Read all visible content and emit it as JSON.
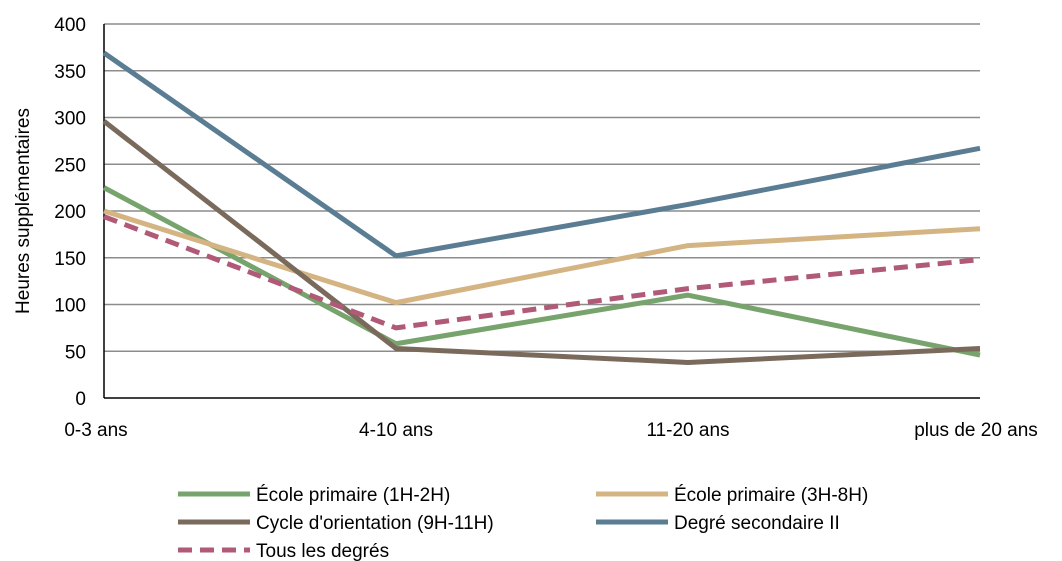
{
  "chart_data": {
    "type": "line",
    "title": "",
    "xlabel": "",
    "ylabel": "Heures supplémentaires",
    "categories": [
      "0-3 ans",
      "4-10 ans",
      "11-20 ans",
      "plus de 20 ans"
    ],
    "ylim": [
      0,
      400
    ],
    "yticks": [
      "0",
      "50",
      "100",
      "150",
      "200",
      "250",
      "300",
      "350",
      "400"
    ],
    "grid": true,
    "legend_position": "bottom",
    "series": [
      {
        "name": "École primaire (1H-2H)",
        "values": [
          225,
          58,
          110,
          46
        ],
        "color": "#77a36c",
        "dashed": false
      },
      {
        "name": "École primaire (3H-8H)",
        "values": [
          200,
          102,
          163,
          181
        ],
        "color": "#d4b483",
        "dashed": false
      },
      {
        "name": "Cycle d'orientation (9H-11H)",
        "values": [
          296,
          53,
          38,
          53
        ],
        "color": "#7a6a5c",
        "dashed": false
      },
      {
        "name": "Degré secondaire II",
        "values": [
          369,
          152,
          207,
          267
        ],
        "color": "#5a7d93",
        "dashed": false
      },
      {
        "name": "Tous les degrés",
        "values": [
          194,
          75,
          117,
          148
        ],
        "color": "#b05a78",
        "dashed": true
      }
    ]
  }
}
